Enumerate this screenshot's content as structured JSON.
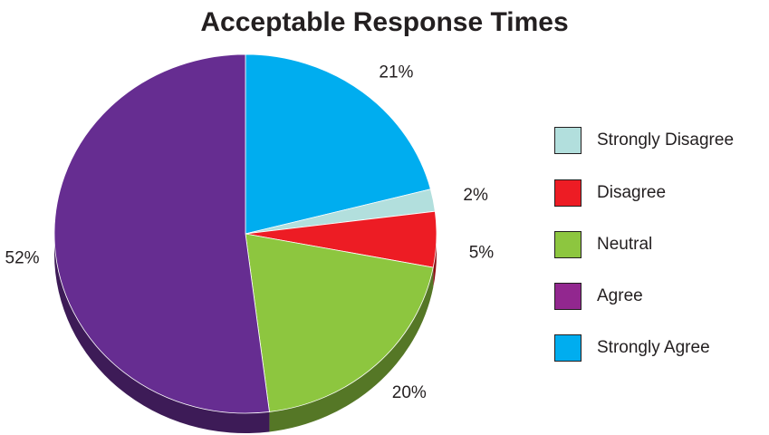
{
  "chart_data": {
    "type": "pie",
    "title": "Acceptable Response Times",
    "legend_position": "right",
    "slices": [
      {
        "label": "Strongly Agree",
        "value": 21,
        "value_label": "21%",
        "color": "#00adef"
      },
      {
        "label": "Strongly Disagree",
        "value": 2,
        "value_label": "2%",
        "color": "#b2dfdd"
      },
      {
        "label": "Disagree",
        "value": 5,
        "value_label": "5%",
        "color": "#ed1c24"
      },
      {
        "label": "Neutral",
        "value": 20,
        "value_label": "20%",
        "color": "#8dc63f"
      },
      {
        "label": "Agree",
        "value": 52,
        "value_label": "52%",
        "color": "#662d91"
      }
    ],
    "legend": [
      {
        "label": "Strongly Disagree",
        "color": "#b2dfdd"
      },
      {
        "label": "Disagree",
        "color": "#ed1c24"
      },
      {
        "label": "Neutral",
        "color": "#8dc63f"
      },
      {
        "label": "Agree",
        "color": "#92278f"
      },
      {
        "label": "Strongly Agree",
        "color": "#00adef"
      }
    ]
  }
}
